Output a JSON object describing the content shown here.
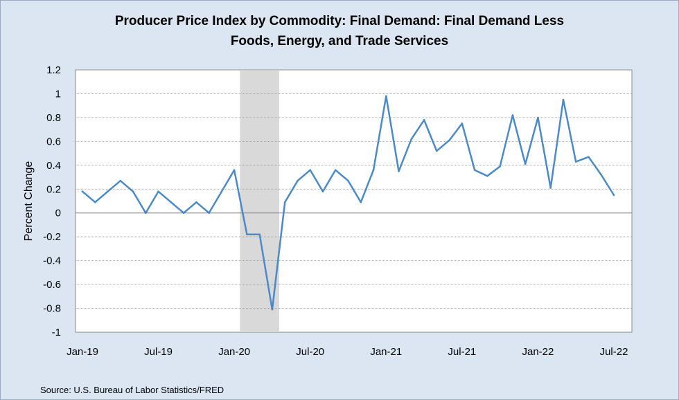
{
  "title_line1": "Producer Price Index by Commodity: Final Demand: Final Demand Less",
  "title_line2": "Foods, Energy, and Trade Services",
  "source": "Source: U.S. Bureau of Labor Statistics/FRED",
  "colors": {
    "background": "#dce6f2",
    "plot_area": "#ffffff",
    "line": "#4a8ac9",
    "recession": "#d9d9d9",
    "grid": "#9a9a9a"
  },
  "chart_data": {
    "type": "line",
    "title": "Producer Price Index by Commodity: Final Demand: Final Demand Less Foods, Energy, and Trade Services",
    "xlabel": "",
    "ylabel": "Percent Change",
    "ylim": [
      -1,
      1.2
    ],
    "yticks": [
      1.2,
      1,
      0.8,
      0.6,
      0.4,
      0.2,
      0,
      -0.2,
      -0.4,
      -0.6,
      -0.8,
      -1
    ],
    "xtick_labels": [
      "Jan-19",
      "Jul-19",
      "Jan-20",
      "Jul-20",
      "Jan-21",
      "Jul-21",
      "Jan-22",
      "Jul-22"
    ],
    "grid": true,
    "recession_shading": {
      "start": "Feb-20",
      "end": "Apr-20"
    },
    "series": [
      {
        "name": "PPI Final Demand Less Foods, Energy, and Trade Services",
        "x": [
          "Jan-19",
          "Feb-19",
          "Mar-19",
          "Apr-19",
          "May-19",
          "Jun-19",
          "Jul-19",
          "Aug-19",
          "Sep-19",
          "Oct-19",
          "Nov-19",
          "Dec-19",
          "Jan-20",
          "Feb-20",
          "Mar-20",
          "Apr-20",
          "May-20",
          "Jun-20",
          "Jul-20",
          "Aug-20",
          "Sep-20",
          "Oct-20",
          "Nov-20",
          "Dec-20",
          "Jan-21",
          "Feb-21",
          "Mar-21",
          "Apr-21",
          "May-21",
          "Jun-21",
          "Jul-21",
          "Aug-21",
          "Sep-21",
          "Oct-21",
          "Nov-21",
          "Dec-21",
          "Jan-22",
          "Feb-22",
          "Mar-22",
          "Apr-22",
          "May-22",
          "Jun-22",
          "Jul-22"
        ],
        "values": [
          0.18,
          0.09,
          0.18,
          0.27,
          0.18,
          0.0,
          0.18,
          0.09,
          0.0,
          0.09,
          0.0,
          0.18,
          0.36,
          -0.18,
          -0.18,
          -0.81,
          0.09,
          0.27,
          0.36,
          0.18,
          0.36,
          0.27,
          0.09,
          0.36,
          0.98,
          0.35,
          0.62,
          0.78,
          0.52,
          0.61,
          0.75,
          0.36,
          0.31,
          0.39,
          0.82,
          0.41,
          0.8,
          0.21,
          0.95,
          0.43,
          0.47,
          0.32,
          0.15
        ]
      }
    ]
  }
}
